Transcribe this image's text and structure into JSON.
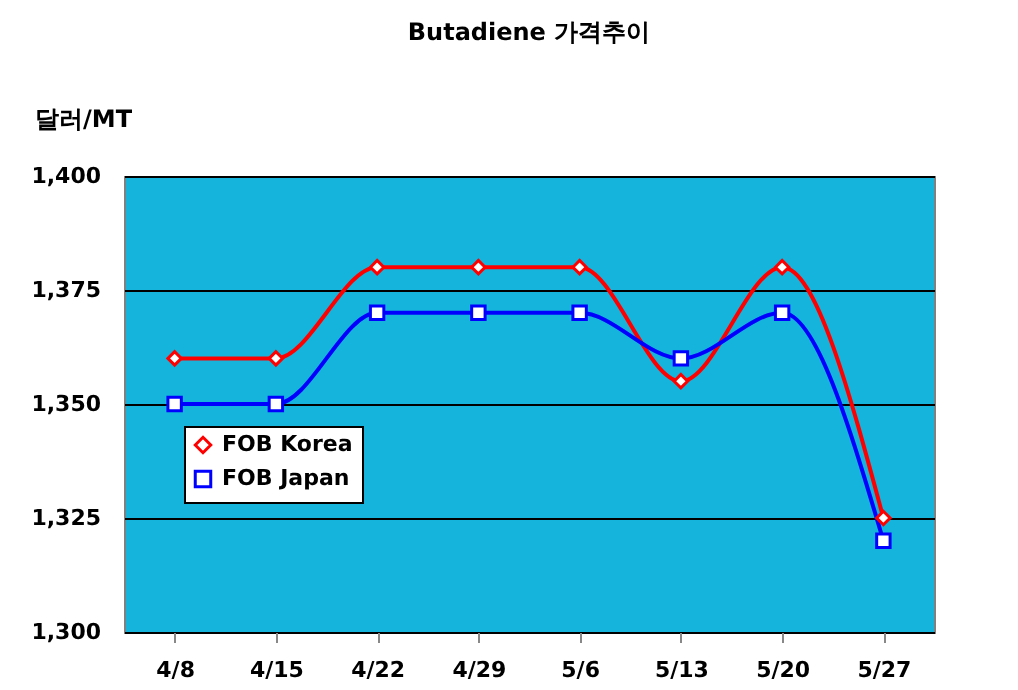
{
  "chart_data": {
    "type": "line",
    "title": "Butadiene 가격추이",
    "ylabel": "달러/MT",
    "categories": [
      "4/8",
      "4/15",
      "4/22",
      "4/29",
      "5/6",
      "5/13",
      "5/20",
      "5/27"
    ],
    "series": [
      {
        "name": "FOB Korea",
        "color": "#ff0000",
        "marker": "diamond",
        "values": [
          1360,
          1360,
          1380,
          1380,
          1380,
          1355,
          1380,
          1325
        ]
      },
      {
        "name": "FOB Japan",
        "color": "#0000ff",
        "marker": "square",
        "values": [
          1350,
          1350,
          1370,
          1370,
          1370,
          1360,
          1370,
          1320
        ]
      }
    ],
    "ylim": [
      1300,
      1400
    ],
    "yticks": [
      {
        "value": 1300,
        "label": "1,300"
      },
      {
        "value": 1325,
        "label": "1,325"
      },
      {
        "value": 1350,
        "label": "1,350"
      },
      {
        "value": 1375,
        "label": "1,375"
      },
      {
        "value": 1400,
        "label": "1,400"
      }
    ],
    "grid": "y",
    "legend": "left",
    "line_style": "solid"
  }
}
